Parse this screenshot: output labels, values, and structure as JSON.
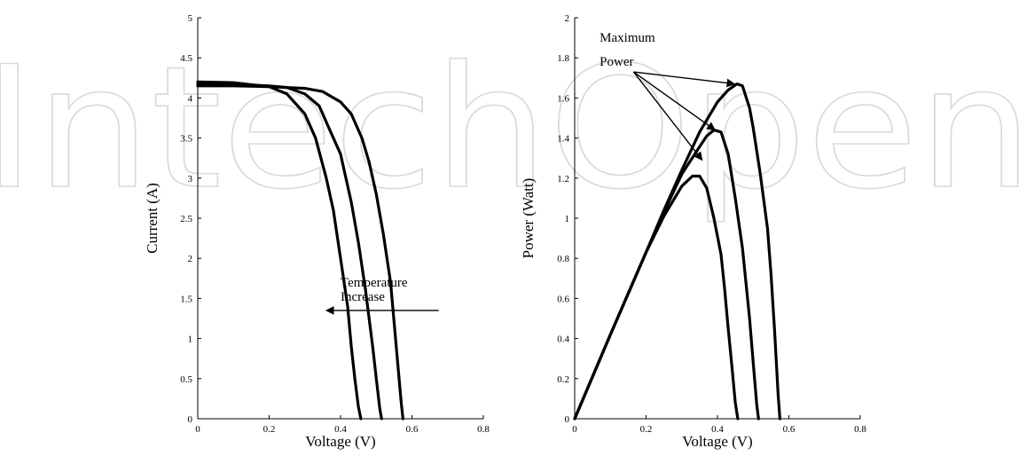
{
  "watermark": {
    "text": "IntechOpen",
    "color": "#d9d9d9"
  },
  "chart_data": [
    {
      "type": "line",
      "title": "",
      "xlabel": "Voltage (V)",
      "ylabel": "Current (A)",
      "xlim": [
        0,
        0.8
      ],
      "ylim": [
        0,
        5
      ],
      "xticks": [
        0,
        0.2,
        0.4,
        0.6,
        0.8
      ],
      "xtick_labels": [
        "0",
        "0.2",
        "0.4",
        "0.6",
        "0.8"
      ],
      "yticks": [
        0,
        0.5,
        1,
        1.5,
        2,
        2.5,
        3,
        3.5,
        4,
        4.5,
        5
      ],
      "ytick_labels": [
        "0",
        "0.5",
        "1",
        "1.5",
        "2",
        "2.5",
        "3",
        "3.5",
        "4",
        "4.5",
        "5"
      ],
      "grid": false,
      "line_color": "#000000",
      "series": [
        {
          "x": [
            0,
            0.1,
            0.2,
            0.25,
            0.3,
            0.33,
            0.36,
            0.38,
            0.4,
            0.42,
            0.43,
            0.44,
            0.45,
            0.457
          ],
          "y": [
            4.2,
            4.19,
            4.14,
            4.05,
            3.8,
            3.5,
            3.0,
            2.6,
            2.0,
            1.4,
            0.9,
            0.5,
            0.15,
            0
          ]
        },
        {
          "x": [
            0,
            0.1,
            0.2,
            0.25,
            0.3,
            0.34,
            0.37,
            0.4,
            0.43,
            0.45,
            0.47,
            0.49,
            0.5,
            0.51,
            0.515
          ],
          "y": [
            4.17,
            4.17,
            4.15,
            4.13,
            4.05,
            3.9,
            3.6,
            3.3,
            2.7,
            2.2,
            1.6,
            0.9,
            0.5,
            0.12,
            0
          ]
        },
        {
          "x": [
            0,
            0.1,
            0.2,
            0.3,
            0.35,
            0.4,
            0.43,
            0.46,
            0.48,
            0.5,
            0.52,
            0.54,
            0.55,
            0.56,
            0.57,
            0.575
          ],
          "y": [
            4.15,
            4.15,
            4.14,
            4.12,
            4.08,
            3.95,
            3.8,
            3.5,
            3.2,
            2.8,
            2.3,
            1.7,
            1.2,
            0.7,
            0.2,
            0
          ]
        }
      ],
      "annotations": [
        {
          "text_lines": [
            "Temperature",
            "Increase"
          ],
          "x": 0.4,
          "y_lines": [
            1.65,
            1.47
          ],
          "arrow": {
            "from": [
              0.675,
              1.35
            ],
            "to": [
              0.36,
              1.35
            ]
          }
        }
      ]
    },
    {
      "type": "line",
      "title": "",
      "xlabel": "Voltage (V)",
      "ylabel": "Power (Watt)",
      "xlim": [
        0,
        0.8
      ],
      "ylim": [
        0,
        2
      ],
      "xticks": [
        0,
        0.2,
        0.4,
        0.6,
        0.8
      ],
      "xtick_labels": [
        "0",
        "0.2",
        "0.4",
        "0.6",
        "0.8"
      ],
      "yticks": [
        0,
        0.2,
        0.4,
        0.6,
        0.8,
        1,
        1.2,
        1.4,
        1.6,
        1.8,
        2
      ],
      "ytick_labels": [
        "0",
        "0.2",
        "0.4",
        "0.6",
        "0.8",
        "1",
        "1.2",
        "1.4",
        "1.6",
        "1.8",
        "2"
      ],
      "grid": false,
      "line_color": "#000000",
      "series": [
        {
          "x": [
            0,
            0.1,
            0.2,
            0.25,
            0.3,
            0.33,
            0.35,
            0.37,
            0.39,
            0.41,
            0.42,
            0.43,
            0.44,
            0.45,
            0.457
          ],
          "y": [
            0,
            0.42,
            0.83,
            1.01,
            1.16,
            1.21,
            1.21,
            1.15,
            1.0,
            0.82,
            0.65,
            0.45,
            0.27,
            0.08,
            0
          ]
        },
        {
          "x": [
            0,
            0.1,
            0.2,
            0.25,
            0.3,
            0.34,
            0.37,
            0.39,
            0.41,
            0.43,
            0.45,
            0.47,
            0.49,
            0.5,
            0.51,
            0.515
          ],
          "y": [
            0,
            0.42,
            0.83,
            1.03,
            1.22,
            1.33,
            1.41,
            1.44,
            1.43,
            1.32,
            1.1,
            0.85,
            0.5,
            0.28,
            0.07,
            0
          ]
        },
        {
          "x": [
            0,
            0.1,
            0.2,
            0.25,
            0.3,
            0.35,
            0.4,
            0.43,
            0.455,
            0.47,
            0.49,
            0.5,
            0.52,
            0.54,
            0.55,
            0.56,
            0.57,
            0.575
          ],
          "y": [
            0,
            0.42,
            0.83,
            1.04,
            1.24,
            1.43,
            1.58,
            1.64,
            1.67,
            1.66,
            1.55,
            1.45,
            1.22,
            0.95,
            0.72,
            0.44,
            0.12,
            0
          ]
        }
      ],
      "annotations": [
        {
          "text_lines": [
            "Maximum",
            "Power"
          ],
          "x": 0.07,
          "y_lines": [
            1.88,
            1.76
          ],
          "arrows": [
            {
              "from": [
                0.165,
                1.73
              ],
              "to": [
                0.448,
                1.67
              ]
            },
            {
              "from": [
                0.165,
                1.73
              ],
              "to": [
                0.393,
                1.44
              ]
            },
            {
              "from": [
                0.165,
                1.73
              ],
              "to": [
                0.357,
                1.29
              ]
            }
          ]
        }
      ]
    }
  ]
}
